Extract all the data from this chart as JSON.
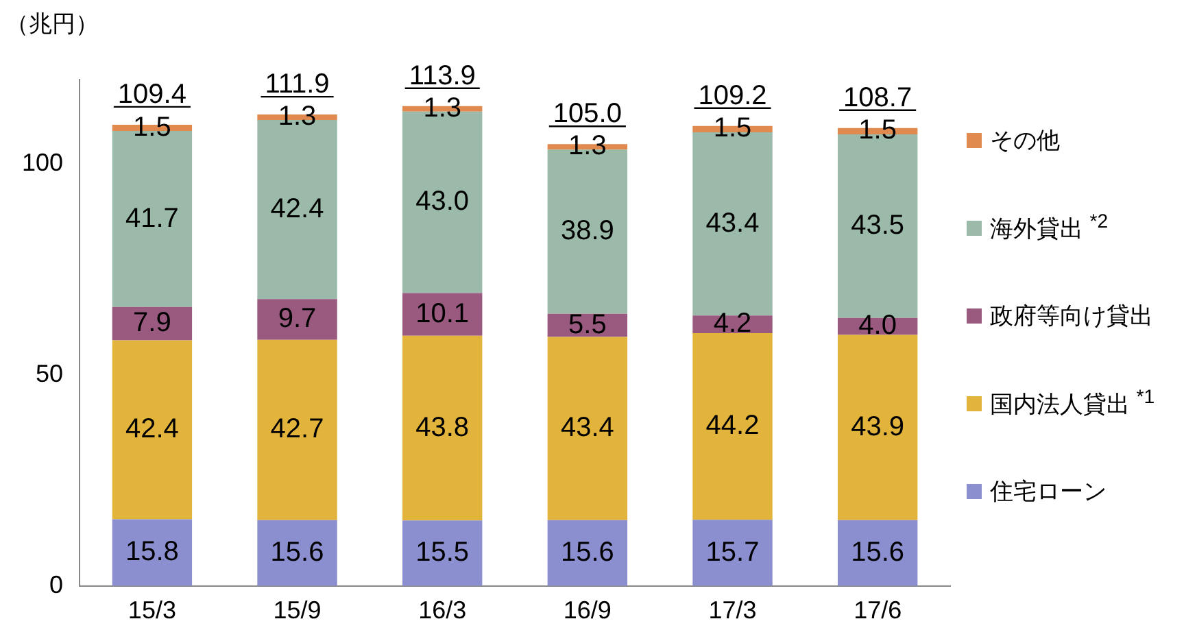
{
  "chart_data": {
    "type": "bar",
    "stacked": true,
    "ylabel": "（兆円）",
    "categories": [
      "15/3",
      "15/9",
      "16/3",
      "16/9",
      "17/3",
      "17/6"
    ],
    "series": [
      {
        "name": "住宅ローン",
        "color": "#8b8fcf",
        "values": [
          15.8,
          15.6,
          15.5,
          15.6,
          15.7,
          15.6
        ],
        "value_labels": [
          "15.8",
          "15.6",
          "15.5",
          "15.6",
          "15.7",
          "15.6"
        ]
      },
      {
        "name": "国内法人貸出 $^{*1}$",
        "color": "#e2b43c",
        "values": [
          42.4,
          42.7,
          43.8,
          43.4,
          44.2,
          43.9
        ],
        "value_labels": [
          "42.4",
          "42.7",
          "43.8",
          "43.4",
          "44.2",
          "43.9"
        ]
      },
      {
        "name": "政府等向け貸出",
        "color": "#9a5a80",
        "values": [
          7.9,
          9.7,
          10.1,
          5.5,
          4.2,
          4.0
        ],
        "value_labels": [
          "7.9",
          "9.7",
          "10.1",
          "5.5",
          "4.2",
          "4.0"
        ]
      },
      {
        "name": "海外貸出 $^{*2}$",
        "color": "#9bbaa9",
        "values": [
          41.7,
          42.4,
          43.0,
          38.9,
          43.4,
          43.5
        ],
        "value_labels": [
          "41.7",
          "42.4",
          "43.0",
          "38.9",
          "43.4",
          "43.5"
        ]
      },
      {
        "name": "その他",
        "color": "#e08a50",
        "values": [
          1.5,
          1.3,
          1.3,
          1.3,
          1.5,
          1.5
        ],
        "value_labels": [
          "1.5",
          "1.3",
          "1.3",
          "1.3",
          "1.5",
          "1.5"
        ]
      }
    ],
    "totals": [
      "109.4",
      "111.9",
      "113.9",
      "105.0",
      "109.2",
      "108.7"
    ],
    "legend": "right",
    "grid": false,
    "ylim": [
      0,
      120
    ],
    "yticks": [
      0,
      50,
      100
    ]
  }
}
